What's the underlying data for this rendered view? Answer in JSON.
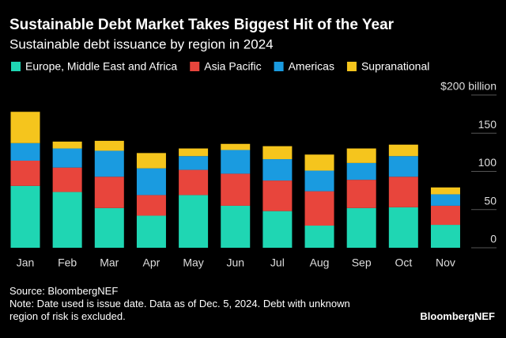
{
  "chart_data": {
    "type": "stacked-bar",
    "title": "Sustainable Debt Market Takes Biggest Hit of the Year",
    "subtitle": "Sustainable debt issuance by region in 2024",
    "categories": [
      "Jan",
      "Feb",
      "Mar",
      "Apr",
      "May",
      "Jun",
      "Jul",
      "Aug",
      "Sep",
      "Oct",
      "Nov"
    ],
    "series": [
      {
        "name": "Europe, Middle East and Africa",
        "color": "#1fd6b3",
        "values": [
          81,
          73,
          52,
          42,
          69,
          55,
          48,
          29,
          52,
          53,
          30
        ]
      },
      {
        "name": "Asia Pacific",
        "color": "#e8453c",
        "values": [
          33,
          32,
          41,
          27,
          33,
          42,
          40,
          45,
          37,
          40,
          25
        ]
      },
      {
        "name": "Americas",
        "color": "#1a9be0",
        "values": [
          23,
          25,
          34,
          35,
          18,
          31,
          28,
          27,
          22,
          27,
          15
        ]
      },
      {
        "name": "Supranational",
        "color": "#f5c51d",
        "values": [
          41,
          9,
          13,
          20,
          10,
          8,
          17,
          21,
          19,
          15,
          9
        ]
      }
    ],
    "ylim": [
      0,
      200
    ],
    "yticks": [
      0,
      50,
      100,
      150,
      {
        "value": 200,
        "label": "$200 billion"
      }
    ],
    "source": "Source: BloombergNEF",
    "note": "Note: Date used is issue date. Data as of Dec. 5, 2024. Debt with unknown region of risk is excluded.",
    "credit": "BloombergNEF"
  }
}
